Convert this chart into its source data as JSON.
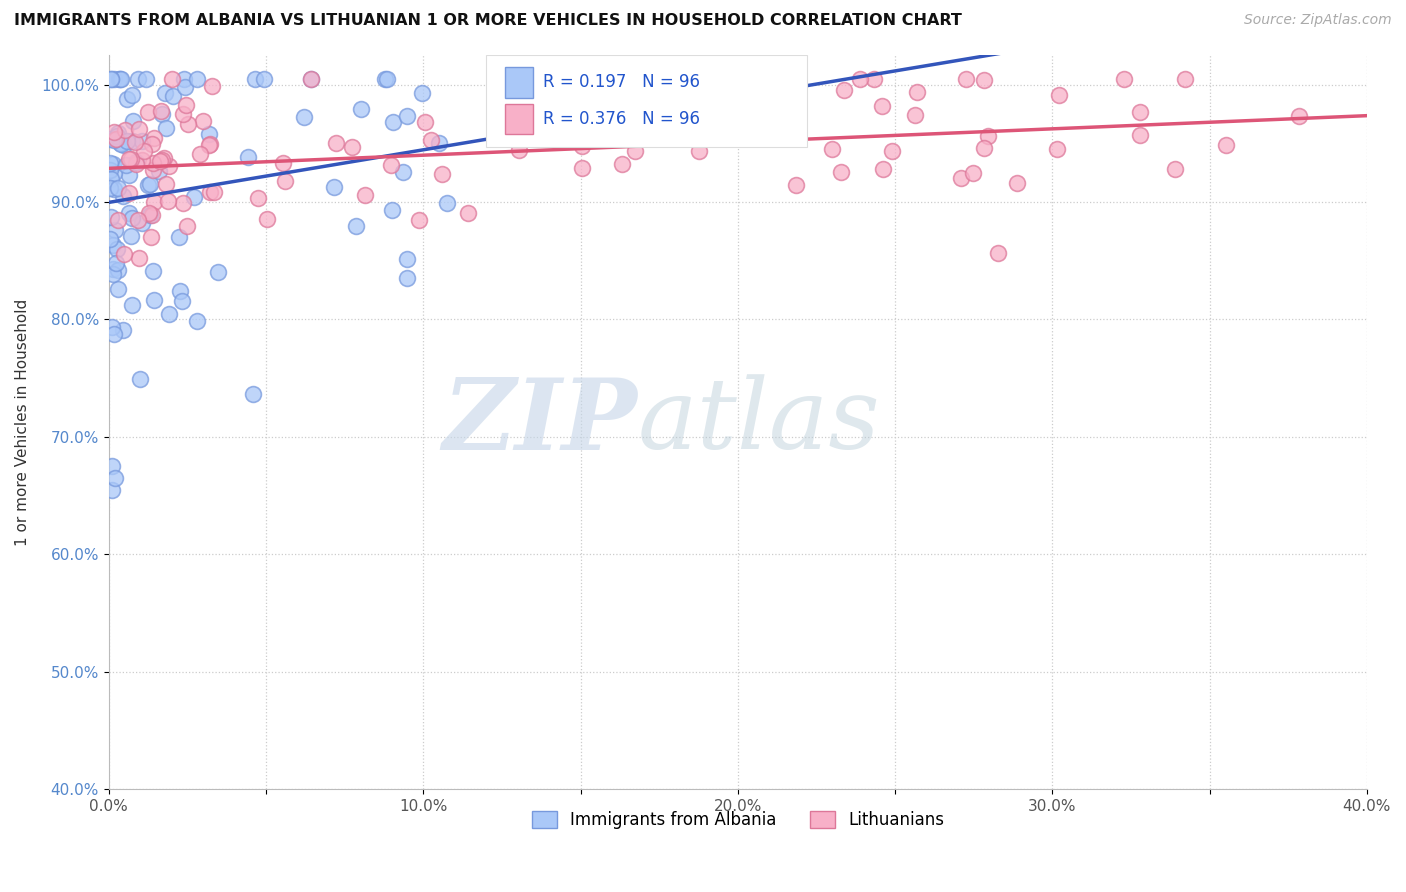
{
  "title": "IMMIGRANTS FROM ALBANIA VS LITHUANIAN 1 OR MORE VEHICLES IN HOUSEHOLD CORRELATION CHART",
  "source": "Source: ZipAtlas.com",
  "ylabel": "1 or more Vehicles in Household",
  "xlim": [
    0.0,
    0.4
  ],
  "ylim": [
    0.4,
    1.025
  ],
  "xticks": [
    0.0,
    0.05,
    0.1,
    0.15,
    0.2,
    0.25,
    0.3,
    0.35,
    0.4
  ],
  "xticklabels": [
    "0.0%",
    "",
    "10.0%",
    "",
    "20.0%",
    "",
    "30.0%",
    "",
    "40.0%"
  ],
  "yticks": [
    0.4,
    0.5,
    0.6,
    0.7,
    0.8,
    0.9,
    1.0
  ],
  "yticklabels": [
    "40.0%",
    "50.0%",
    "60.0%",
    "70.0%",
    "80.0%",
    "90.0%",
    "100.0%"
  ],
  "albania_color": "#aac8f8",
  "albania_edge_color": "#7799dd",
  "lithuanian_color": "#f8b0c8",
  "lithuanian_edge_color": "#dd7799",
  "albania_line_color": "#3355bb",
  "lithuanian_line_color": "#dd5577",
  "albania_R": 0.197,
  "albania_N": 96,
  "lithuanian_R": 0.376,
  "lithuanian_N": 96,
  "legend_label_1": "Immigrants from Albania",
  "legend_label_2": "Lithuanians",
  "watermark_zip": "ZIP",
  "watermark_atlas": "atlas",
  "watermark_color_zip": "#c8d8ee",
  "watermark_color_atlas": "#c8d8dd"
}
